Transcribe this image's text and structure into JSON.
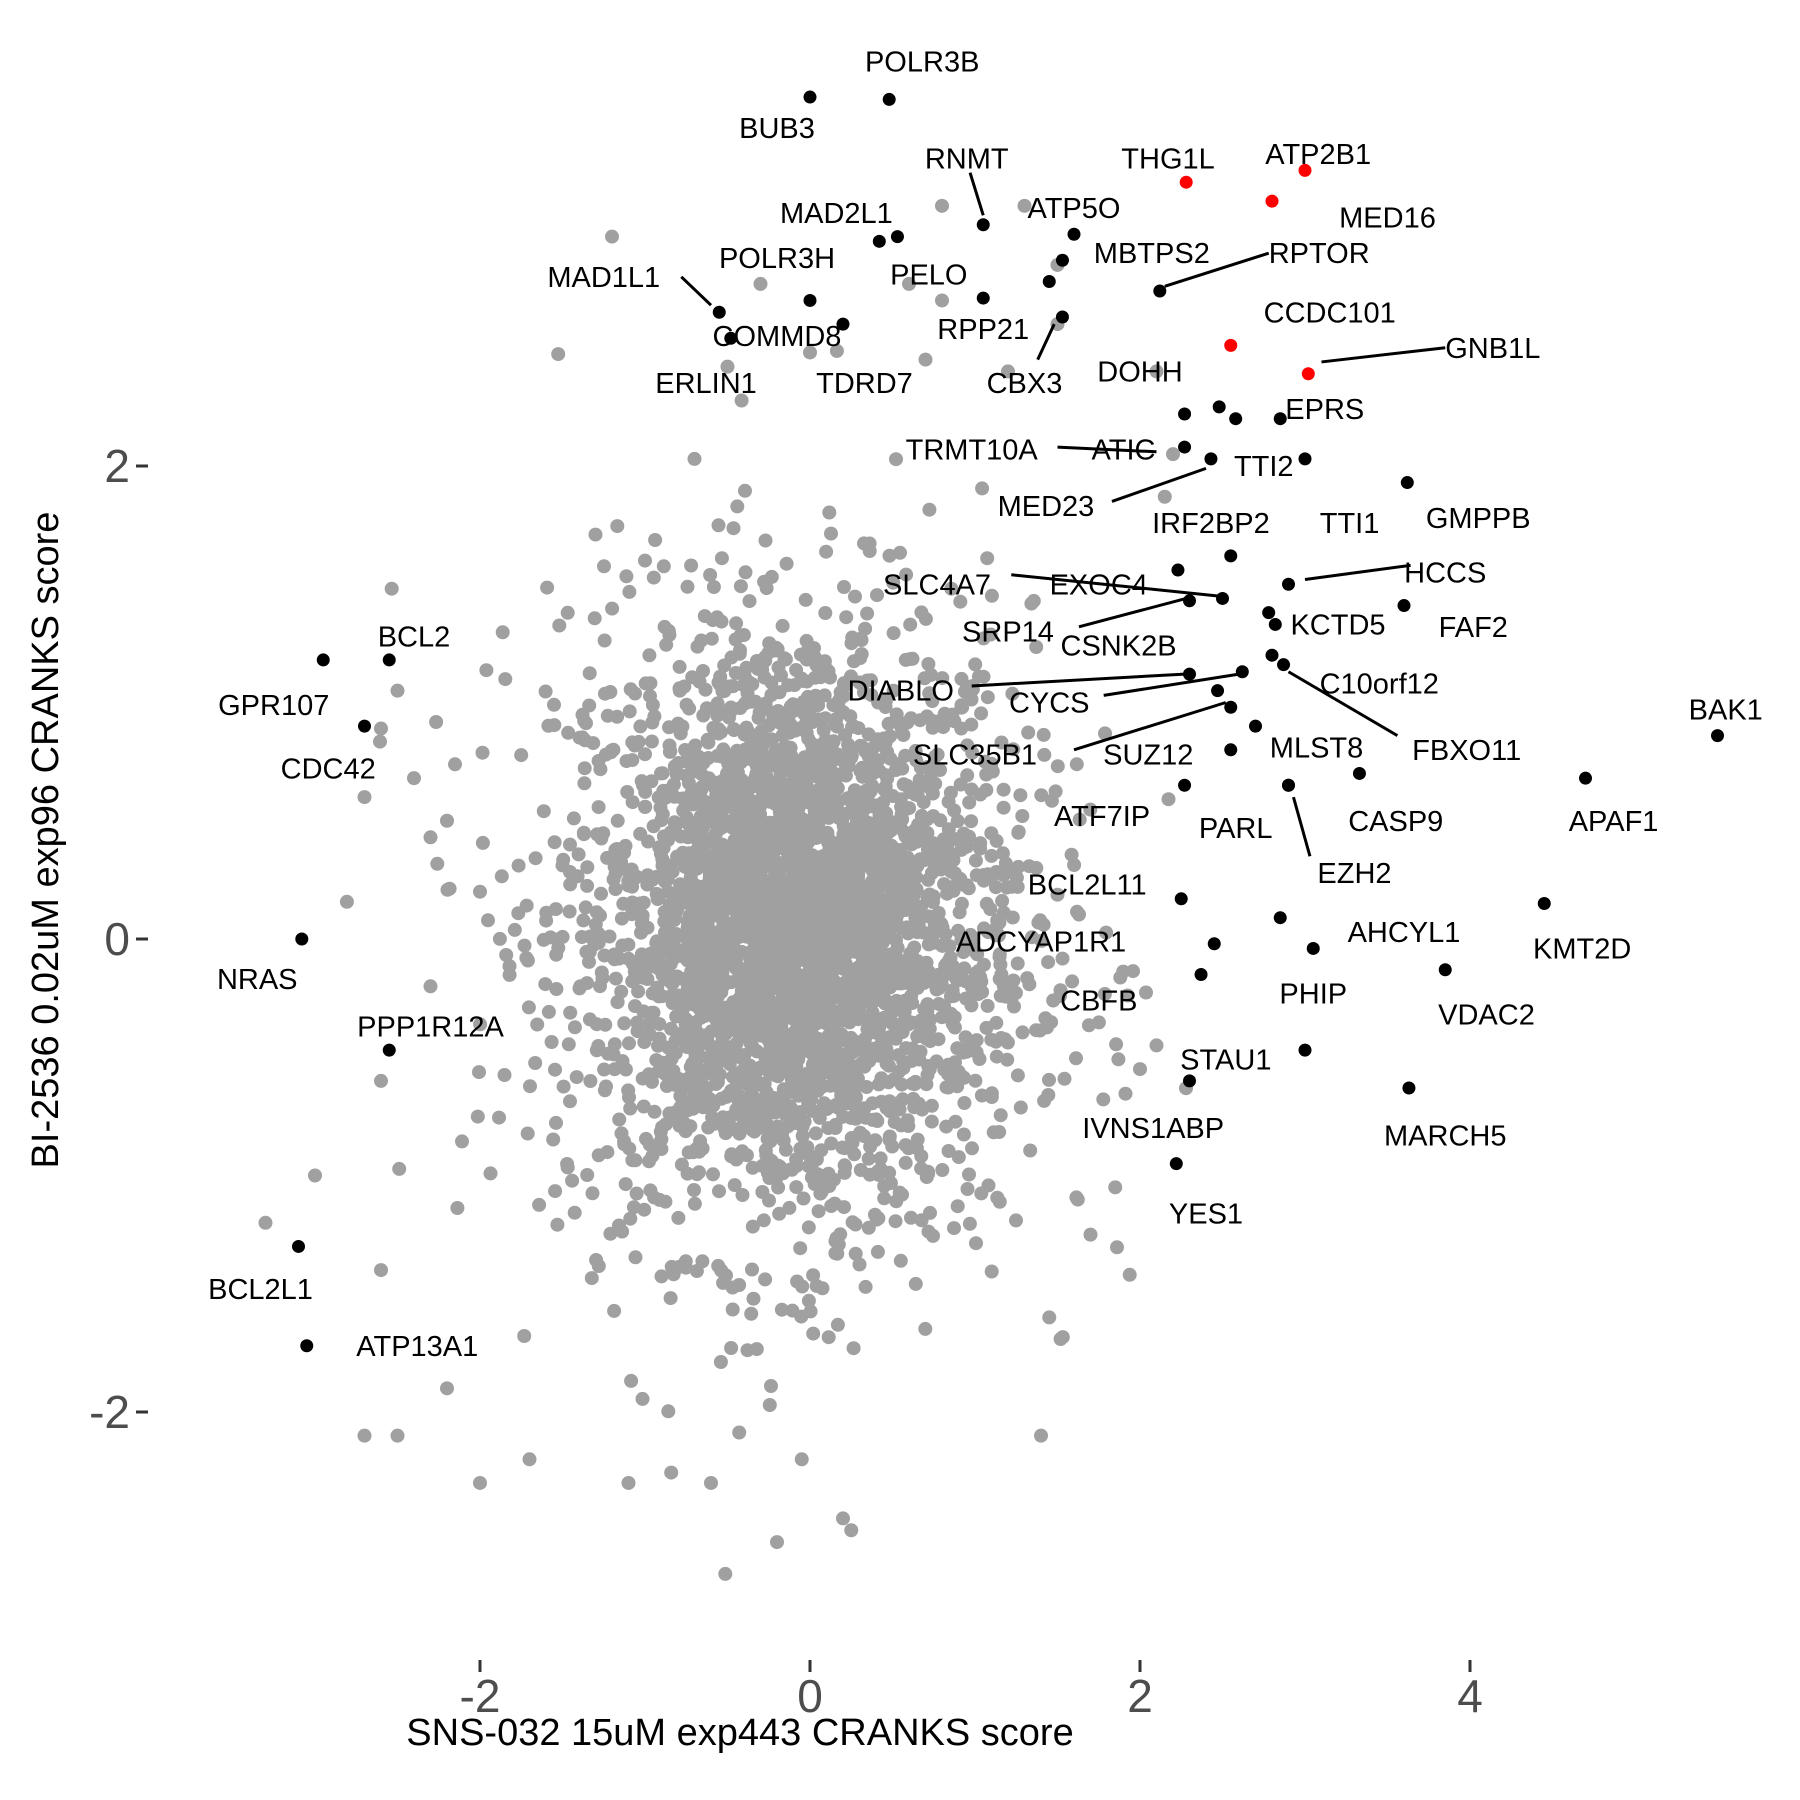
{
  "chart_data": {
    "type": "scatter",
    "title": "",
    "xlabel": "SNS-032 15uM exp443 CRANKS score",
    "ylabel": "BI-2536 0.02uM exp96 CRANKS score",
    "xlim": [
      -3.6,
      5.95
    ],
    "ylim": [
      -2.95,
      3.95
    ],
    "grid": false,
    "legend": "none",
    "x_ticks": [
      {
        "value": -2,
        "label": "-2"
      },
      {
        "value": 0,
        "label": "0"
      },
      {
        "value": 2,
        "label": "2"
      },
      {
        "value": 4,
        "label": "4"
      }
    ],
    "y_ticks": [
      {
        "value": 2,
        "label": "2"
      },
      {
        "value": 0,
        "label": "0"
      },
      {
        "value": -2,
        "label": "-2"
      }
    ],
    "colors": {
      "background_genes": "#a0a0a0",
      "highlight": "#000000",
      "red": "#ff0000"
    },
    "background_cloud": {
      "description_count": 2400,
      "center": [
        -0.1,
        0.05
      ],
      "sd": [
        0.72,
        0.68
      ]
    },
    "background_points": [
      [
        0.8,
        3.1
      ],
      [
        1.3,
        3.1
      ],
      [
        -1.2,
        2.97
      ],
      [
        -0.3,
        2.77
      ],
      [
        0.6,
        2.77
      ],
      [
        0.0,
        2.48
      ],
      [
        -0.5,
        2.42
      ],
      [
        -0.7,
        2.03
      ],
      [
        -1.3,
        1.71
      ],
      [
        -1.0,
        1.6
      ],
      [
        -2.5,
        1.05
      ],
      [
        -2.6,
        0.89
      ],
      [
        -2.4,
        0.68
      ],
      [
        -2.7,
        0.6
      ],
      [
        -2.2,
        0.5
      ],
      [
        -2.3,
        0.43
      ],
      [
        -2.0,
        0.2
      ],
      [
        -2.3,
        -0.2
      ],
      [
        -2.6,
        -0.6
      ],
      [
        -3.0,
        -1.0
      ],
      [
        -3.3,
        -1.2
      ],
      [
        -2.6,
        -1.4
      ],
      [
        -2.2,
        -1.9
      ],
      [
        -2.5,
        -2.1
      ],
      [
        -2.7,
        -2.1
      ],
      [
        -2.0,
        -2.3
      ],
      [
        -1.7,
        -2.2
      ],
      [
        -1.1,
        -2.3
      ],
      [
        -0.6,
        -2.3
      ],
      [
        0.2,
        -2.45
      ],
      [
        0.25,
        -2.5
      ],
      [
        -0.2,
        -2.55
      ],
      [
        1.45,
        -1.6
      ],
      [
        1.7,
        -1.25
      ],
      [
        2.0,
        -0.55
      ],
      [
        2.1,
        -0.45
      ],
      [
        1.85,
        -1.05
      ],
      [
        1.4,
        -2.1
      ],
      [
        -0.05,
        -2.2
      ],
      [
        1.5,
        2.85
      ],
      [
        1.5,
        2.6
      ],
      [
        2.1,
        2.4
      ],
      [
        2.2,
        2.05
      ],
      [
        2.15,
        1.87
      ],
      [
        1.2,
        2.4
      ],
      [
        0.8,
        2.7
      ],
      [
        0.7,
        2.45
      ]
    ],
    "genes": [
      {
        "name": "POLR3B",
        "x": 0.48,
        "y": 3.55,
        "color": "black"
      },
      {
        "name": "BUB3",
        "x": 0.0,
        "y": 3.56,
        "color": "black"
      },
      {
        "name": "RNMT",
        "x": 1.05,
        "y": 3.02,
        "color": "black"
      },
      {
        "name": "THG1L",
        "x": 2.28,
        "y": 3.2,
        "color": "red"
      },
      {
        "name": "ATP2B1",
        "x": 3.0,
        "y": 3.25,
        "color": "red"
      },
      {
        "name": "MED16",
        "x": 2.8,
        "y": 3.12,
        "color": "red"
      },
      {
        "name": "MAD2L1",
        "x": 0.42,
        "y": 2.95,
        "color": "black"
      },
      {
        "name": "MAD2L1 (2)",
        "x": 0.53,
        "y": 2.97,
        "color": "black"
      },
      {
        "name": "ATP5O",
        "x": 1.6,
        "y": 2.98,
        "color": "black"
      },
      {
        "name": "MBTPS2",
        "x": 1.53,
        "y": 2.87,
        "color": "black"
      },
      {
        "name": "RPTOR",
        "x": 2.12,
        "y": 2.74,
        "color": "black"
      },
      {
        "name": "POLR3H",
        "x": 0.0,
        "y": 2.7,
        "color": "black"
      },
      {
        "name": "PELO",
        "x": 1.05,
        "y": 2.71,
        "color": "black"
      },
      {
        "name": "MAD1L1",
        "x": -0.55,
        "y": 2.65,
        "color": "black"
      },
      {
        "name": "COMMD8",
        "x": -0.48,
        "y": 2.54,
        "color": "black"
      },
      {
        "name": "TDRD7",
        "x": 0.2,
        "y": 2.6,
        "color": "black"
      },
      {
        "name": "RPP21",
        "x": 1.45,
        "y": 2.78,
        "color": "black"
      },
      {
        "name": "CBX3",
        "x": 1.53,
        "y": 2.63,
        "color": "black"
      },
      {
        "name": "CCDC101",
        "x": 2.55,
        "y": 2.51,
        "color": "red"
      },
      {
        "name": "GNB1L",
        "x": 3.02,
        "y": 2.39,
        "color": "red"
      },
      {
        "name": "DOHH",
        "x": 2.27,
        "y": 2.22,
        "color": "black"
      },
      {
        "name": "DOHH (2)",
        "x": 2.48,
        "y": 2.25,
        "color": "black"
      },
      {
        "name": "EPRS",
        "x": 2.58,
        "y": 2.2,
        "color": "black"
      },
      {
        "name": "EPRS (2)",
        "x": 2.85,
        "y": 2.2,
        "color": "black"
      },
      {
        "name": "ATIC",
        "x": 2.27,
        "y": 2.08,
        "color": "black"
      },
      {
        "name": "TTI2",
        "x": 2.43,
        "y": 2.03,
        "color": "black"
      },
      {
        "name": "TTI1",
        "x": 3.0,
        "y": 2.03,
        "color": "black"
      },
      {
        "name": "GMPPB",
        "x": 3.62,
        "y": 1.93,
        "color": "black"
      },
      {
        "name": "IRF2BP2",
        "x": 2.55,
        "y": 1.62,
        "color": "black"
      },
      {
        "name": "EXOC4",
        "x": 2.23,
        "y": 1.56,
        "color": "black"
      },
      {
        "name": "SLC4A7",
        "x": 2.5,
        "y": 1.44,
        "color": "black"
      },
      {
        "name": "HCCS",
        "x": 2.9,
        "y": 1.5,
        "color": "black"
      },
      {
        "name": "SRP14",
        "x": 2.3,
        "y": 1.43,
        "color": "black"
      },
      {
        "name": "FAF2",
        "x": 3.6,
        "y": 1.41,
        "color": "black"
      },
      {
        "name": "KCTD5",
        "x": 2.78,
        "y": 1.38,
        "color": "black"
      },
      {
        "name": "KCTD5 (2)",
        "x": 2.82,
        "y": 1.33,
        "color": "black"
      },
      {
        "name": "C10orf12",
        "x": 2.8,
        "y": 1.2,
        "color": "black"
      },
      {
        "name": "FBXO11",
        "x": 2.87,
        "y": 1.16,
        "color": "black"
      },
      {
        "name": "CSNK2B",
        "x": 2.62,
        "y": 1.13,
        "color": "black"
      },
      {
        "name": "DIABLO",
        "x": 2.3,
        "y": 1.12,
        "color": "black"
      },
      {
        "name": "CYCS",
        "x": 2.47,
        "y": 1.05,
        "color": "black"
      },
      {
        "name": "SLC35B1",
        "x": 2.55,
        "y": 0.98,
        "color": "black"
      },
      {
        "name": "MLST8",
        "x": 2.7,
        "y": 0.9,
        "color": "black"
      },
      {
        "name": "SUZ12",
        "x": 2.55,
        "y": 0.8,
        "color": "black"
      },
      {
        "name": "BAK1",
        "x": 5.5,
        "y": 0.86,
        "color": "black"
      },
      {
        "name": "CASP9",
        "x": 3.33,
        "y": 0.7,
        "color": "black"
      },
      {
        "name": "APAF1",
        "x": 4.7,
        "y": 0.68,
        "color": "black"
      },
      {
        "name": "ATF7IP",
        "x": 2.27,
        "y": 0.65,
        "color": "black"
      },
      {
        "name": "PARL",
        "x": 2.9,
        "y": 0.65,
        "color": "black"
      },
      {
        "name": "EZH2",
        "x": 2.9,
        "y": 0.65,
        "color": "black"
      },
      {
        "name": "BCL2L11",
        "x": 2.25,
        "y": 0.17,
        "color": "black"
      },
      {
        "name": "KMT2D",
        "x": 4.45,
        "y": 0.15,
        "color": "black"
      },
      {
        "name": "AHCYL1",
        "x": 2.85,
        "y": 0.09,
        "color": "black"
      },
      {
        "name": "ADCYAP1R1",
        "x": 2.45,
        "y": -0.02,
        "color": "black"
      },
      {
        "name": "PHIP",
        "x": 3.05,
        "y": -0.04,
        "color": "black"
      },
      {
        "name": "CBFB",
        "x": 2.37,
        "y": -0.15,
        "color": "black"
      },
      {
        "name": "VDAC2",
        "x": 3.85,
        "y": -0.13,
        "color": "black"
      },
      {
        "name": "STAU1",
        "x": 3.0,
        "y": -0.47,
        "color": "black"
      },
      {
        "name": "IVNS1ABP",
        "x": 2.3,
        "y": -0.6,
        "color": "black"
      },
      {
        "name": "MARCH5",
        "x": 3.63,
        "y": -0.63,
        "color": "black"
      },
      {
        "name": "YES1",
        "x": 2.22,
        "y": -0.95,
        "color": "black"
      },
      {
        "name": "BCL2",
        "x": -2.55,
        "y": 1.18,
        "color": "black"
      },
      {
        "name": "GPR107",
        "x": -2.95,
        "y": 1.18,
        "color": "black"
      },
      {
        "name": "CDC42",
        "x": -2.7,
        "y": 0.9,
        "color": "black"
      },
      {
        "name": "NRAS",
        "x": -3.08,
        "y": 0.0,
        "color": "black"
      },
      {
        "name": "PPP1R12A",
        "x": -2.55,
        "y": -0.47,
        "color": "black"
      },
      {
        "name": "BCL2L1",
        "x": -3.1,
        "y": -1.3,
        "color": "black"
      },
      {
        "name": "ATP13A1",
        "x": -3.05,
        "y": -1.72,
        "color": "black"
      }
    ],
    "labels": [
      {
        "text": "POLR3B",
        "lx": 0.68,
        "ly": 3.71,
        "anchor": "middle"
      },
      {
        "text": "BUB3",
        "lx": -0.2,
        "ly": 3.43,
        "anchor": "middle"
      },
      {
        "text": "RNMT",
        "lx": 0.95,
        "ly": 3.3,
        "anchor": "middle",
        "line": [
          0.97,
          3.24,
          1.05,
          3.06
        ]
      },
      {
        "text": "THG1L",
        "lx": 2.17,
        "ly": 3.3,
        "anchor": "middle"
      },
      {
        "text": "ATP2B1",
        "lx": 3.08,
        "ly": 3.32,
        "anchor": "middle"
      },
      {
        "text": "MED16",
        "lx": 3.5,
        "ly": 3.05,
        "anchor": "middle"
      },
      {
        "text": "MAD2L1",
        "lx": 0.16,
        "ly": 3.07,
        "anchor": "middle"
      },
      {
        "text": "ATP5O",
        "lx": 1.6,
        "ly": 3.09,
        "anchor": "middle"
      },
      {
        "text": "MBTPS2",
        "lx": 1.72,
        "ly": 2.9,
        "anchor": "start"
      },
      {
        "text": "RPTOR",
        "lx": 2.78,
        "ly": 2.9,
        "anchor": "start",
        "line": [
          2.15,
          2.76,
          2.78,
          2.9
        ]
      },
      {
        "text": "POLR3H",
        "lx": -0.2,
        "ly": 2.88,
        "anchor": "middle"
      },
      {
        "text": "PELO",
        "lx": 0.72,
        "ly": 2.81,
        "anchor": "middle"
      },
      {
        "text": "MAD1L1",
        "lx": -1.25,
        "ly": 2.8,
        "anchor": "middle",
        "line": [
          -0.78,
          2.8,
          -0.6,
          2.68
        ]
      },
      {
        "text": "COMMD8",
        "lx": -0.2,
        "ly": 2.55,
        "anchor": "middle"
      },
      {
        "text": "TDRD7",
        "lx": 0.33,
        "ly": 2.35,
        "anchor": "middle"
      },
      {
        "text": "RPP21",
        "lx": 1.05,
        "ly": 2.58,
        "anchor": "middle"
      },
      {
        "text": "CBX3",
        "lx": 1.3,
        "ly": 2.35,
        "anchor": "middle",
        "line": [
          1.38,
          2.45,
          1.48,
          2.6
        ]
      },
      {
        "text": "ERLIN1",
        "lx": -0.63,
        "ly": 2.35,
        "anchor": "middle"
      },
      {
        "text": "CCDC101",
        "lx": 3.15,
        "ly": 2.65,
        "anchor": "middle"
      },
      {
        "text": "GNB1L",
        "lx": 3.85,
        "ly": 2.5,
        "anchor": "start",
        "line": [
          3.1,
          2.44,
          3.85,
          2.5
        ]
      },
      {
        "text": "DOHH",
        "lx": 2.0,
        "ly": 2.4,
        "anchor": "middle"
      },
      {
        "text": "EPRS",
        "lx": 3.12,
        "ly": 2.24,
        "anchor": "middle"
      },
      {
        "text": "TRMT10A",
        "lx": 0.98,
        "ly": 2.07,
        "anchor": "middle",
        "line": [
          1.5,
          2.08,
          2.1,
          2.06
        ]
      },
      {
        "text": "ATIC",
        "lx": 1.9,
        "ly": 2.07,
        "anchor": "middle"
      },
      {
        "text": "TTI2",
        "lx": 2.75,
        "ly": 2.0,
        "anchor": "middle"
      },
      {
        "text": "MED23",
        "lx": 1.43,
        "ly": 1.83,
        "anchor": "middle",
        "line": [
          1.83,
          1.85,
          2.4,
          1.99
        ]
      },
      {
        "text": "IRF2BP2",
        "lx": 2.43,
        "ly": 1.76,
        "anchor": "middle"
      },
      {
        "text": "TTI1",
        "lx": 3.27,
        "ly": 1.76,
        "anchor": "middle"
      },
      {
        "text": "GMPPB",
        "lx": 4.05,
        "ly": 1.78,
        "anchor": "middle"
      },
      {
        "text": "HCCS",
        "lx": 3.85,
        "ly": 1.55,
        "anchor": "middle",
        "line": [
          3.0,
          1.52,
          3.64,
          1.58
        ]
      },
      {
        "text": "SLC4A7",
        "lx": 0.77,
        "ly": 1.5,
        "anchor": "middle",
        "line": [
          1.22,
          1.54,
          2.48,
          1.45
        ]
      },
      {
        "text": "EXOC4",
        "lx": 1.75,
        "ly": 1.5,
        "anchor": "middle"
      },
      {
        "text": "FAF2",
        "lx": 4.02,
        "ly": 1.32,
        "anchor": "middle"
      },
      {
        "text": "SRP14",
        "lx": 1.2,
        "ly": 1.3,
        "anchor": "middle",
        "line": [
          1.63,
          1.32,
          2.28,
          1.44
        ]
      },
      {
        "text": "CSNK2B",
        "lx": 1.87,
        "ly": 1.24,
        "anchor": "middle"
      },
      {
        "text": "KCTD5",
        "lx": 3.2,
        "ly": 1.33,
        "anchor": "middle"
      },
      {
        "text": "DIABLO",
        "lx": 0.55,
        "ly": 1.05,
        "anchor": "middle",
        "line": [
          0.98,
          1.07,
          2.27,
          1.12
        ]
      },
      {
        "text": "CYCS",
        "lx": 1.45,
        "ly": 1.0,
        "anchor": "middle",
        "line": [
          1.78,
          1.03,
          2.6,
          1.12
        ]
      },
      {
        "text": "C10orf12",
        "lx": 3.45,
        "ly": 1.08,
        "anchor": "middle"
      },
      {
        "text": "FBXO11",
        "lx": 3.98,
        "ly": 0.8,
        "anchor": "middle",
        "line": [
          2.9,
          1.13,
          3.56,
          0.86
        ]
      },
      {
        "text": "SLC35B1",
        "lx": 1.0,
        "ly": 0.78,
        "anchor": "middle",
        "line": [
          1.6,
          0.8,
          2.52,
          1.0
        ]
      },
      {
        "text": "SUZ12",
        "lx": 2.05,
        "ly": 0.78,
        "anchor": "middle"
      },
      {
        "text": "MLST8",
        "lx": 3.07,
        "ly": 0.81,
        "anchor": "middle"
      },
      {
        "text": "BAK1",
        "lx": 5.55,
        "ly": 0.97,
        "anchor": "middle"
      },
      {
        "text": "CASP9",
        "lx": 3.55,
        "ly": 0.5,
        "anchor": "middle"
      },
      {
        "text": "APAF1",
        "lx": 4.87,
        "ly": 0.5,
        "anchor": "middle"
      },
      {
        "text": "ATF7IP",
        "lx": 1.77,
        "ly": 0.52,
        "anchor": "middle"
      },
      {
        "text": "PARL",
        "lx": 2.58,
        "ly": 0.47,
        "anchor": "middle"
      },
      {
        "text": "EZH2",
        "lx": 3.3,
        "ly": 0.28,
        "anchor": "middle",
        "line": [
          2.93,
          0.6,
          3.03,
          0.35
        ]
      },
      {
        "text": "BCL2L11",
        "lx": 1.68,
        "ly": 0.23,
        "anchor": "middle"
      },
      {
        "text": "KMT2D",
        "lx": 4.68,
        "ly": -0.04,
        "anchor": "middle"
      },
      {
        "text": "AHCYL1",
        "lx": 3.6,
        "ly": 0.03,
        "anchor": "middle"
      },
      {
        "text": "ADCYAP1R1",
        "lx": 1.4,
        "ly": -0.01,
        "anchor": "middle"
      },
      {
        "text": "PHIP",
        "lx": 3.05,
        "ly": -0.23,
        "anchor": "middle"
      },
      {
        "text": "CBFB",
        "lx": 1.75,
        "ly": -0.26,
        "anchor": "middle"
      },
      {
        "text": "VDAC2",
        "lx": 4.1,
        "ly": -0.32,
        "anchor": "middle"
      },
      {
        "text": "STAU1",
        "lx": 2.52,
        "ly": -0.51,
        "anchor": "middle"
      },
      {
        "text": "IVNS1ABP",
        "lx": 2.08,
        "ly": -0.8,
        "anchor": "middle"
      },
      {
        "text": "MARCH5",
        "lx": 3.85,
        "ly": -0.83,
        "anchor": "middle"
      },
      {
        "text": "YES1",
        "lx": 2.4,
        "ly": -1.16,
        "anchor": "middle"
      },
      {
        "text": "BCL2",
        "lx": -2.4,
        "ly": 1.28,
        "anchor": "middle"
      },
      {
        "text": "GPR107",
        "lx": -3.25,
        "ly": 0.99,
        "anchor": "middle"
      },
      {
        "text": "CDC42",
        "lx": -2.92,
        "ly": 0.72,
        "anchor": "middle"
      },
      {
        "text": "NRAS",
        "lx": -3.35,
        "ly": -0.17,
        "anchor": "middle"
      },
      {
        "text": "PPP1R12A",
        "lx": -2.3,
        "ly": -0.37,
        "anchor": "middle"
      },
      {
        "text": "BCL2L1",
        "lx": -3.33,
        "ly": -1.48,
        "anchor": "middle"
      },
      {
        "text": "ATP13A1",
        "lx": -2.38,
        "ly": -1.72,
        "anchor": "middle"
      }
    ]
  }
}
